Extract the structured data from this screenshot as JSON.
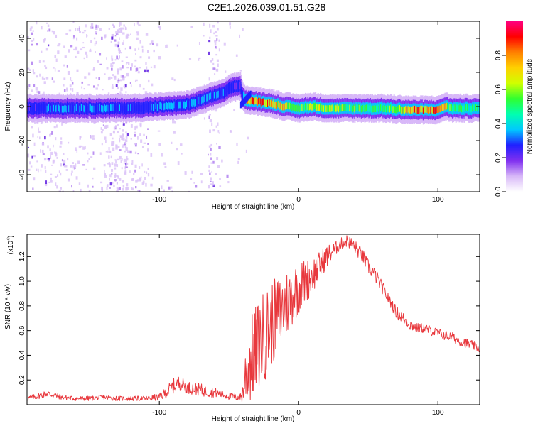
{
  "title": "C2E1.2026.039.01.51.G28",
  "colors": {
    "snr_line": "#e8383d",
    "axis": "#000000",
    "background": "#ffffff"
  },
  "chart_data": [
    {
      "type": "heatmap",
      "name": "spectrogram",
      "xlabel": "Height of straight line (km)",
      "ylabel": "Frequency (Hz)",
      "xlim": [
        -195,
        130
      ],
      "ylim": [
        -50,
        50
      ],
      "xticks": [
        -100,
        0,
        100
      ],
      "yticks": [
        -40,
        -20,
        0,
        20,
        40
      ],
      "colorbar": {
        "label": "Normalized spectral amplitude",
        "range": [
          0.0,
          1.0
        ],
        "ticks": [
          0.0,
          0.2,
          0.4,
          0.6,
          0.8
        ],
        "stops": [
          "#ffffff",
          "#d8b8f8",
          "#8030f0",
          "#2020ff",
          "#00c8ff",
          "#00ffb0",
          "#30ff30",
          "#d0ff00",
          "#ffd000",
          "#ff8000",
          "#ff0000",
          "#ff0080"
        ]
      },
      "ridge": {
        "x": [
          -195,
          -170,
          -140,
          -120,
          -100,
          -80,
          -65,
          -55,
          -48,
          -42,
          -40,
          -38,
          -30,
          -20,
          -10,
          0,
          10,
          20,
          40,
          60,
          80,
          100,
          105,
          110,
          130
        ],
        "y": [
          -1,
          -1,
          -1,
          -1,
          0,
          1,
          5,
          8,
          11,
          12,
          6,
          4,
          3,
          2,
          0,
          -1,
          0,
          -1,
          -1,
          -1,
          -2,
          -2,
          0,
          -1,
          -1
        ],
        "amplitude": [
          0.25,
          0.35,
          0.35,
          0.3,
          0.35,
          0.35,
          0.35,
          0.3,
          0.3,
          0.25,
          0.35,
          0.8,
          0.85,
          0.8,
          0.75,
          0.55,
          0.7,
          0.6,
          0.55,
          0.5,
          0.8,
          0.85,
          0.75,
          0.5,
          0.5
        ]
      }
    },
    {
      "type": "line",
      "name": "snr",
      "xlabel": "Height of straight line (km)",
      "ylabel": "SNR (10 * v/v)",
      "scale_label": "(x10",
      "scale_exponent": "4",
      "xlim": [
        -195,
        130
      ],
      "ylim": [
        0,
        1.38
      ],
      "xticks": [
        -100,
        0,
        100
      ],
      "yticks": [
        0.2,
        0.4,
        0.6,
        0.8,
        1.0,
        1.2
      ],
      "yticklabels": [
        "0.2",
        "0.4",
        "0.6",
        "0.8",
        "1.0",
        "1.2"
      ],
      "series": [
        {
          "name": "SNR",
          "x": [
            -195,
            -180,
            -170,
            -160,
            -150,
            -140,
            -130,
            -120,
            -110,
            -100,
            -95,
            -90,
            -85,
            -80,
            -75,
            -70,
            -65,
            -60,
            -55,
            -50,
            -45,
            -42,
            -40,
            -38,
            -35,
            -30,
            -25,
            -20,
            -15,
            -10,
            -5,
            0,
            5,
            10,
            15,
            20,
            25,
            30,
            35,
            40,
            45,
            50,
            55,
            60,
            65,
            70,
            75,
            80,
            85,
            90,
            95,
            100,
            105,
            110,
            115,
            120,
            125,
            130
          ],
          "y": [
            0.05,
            0.09,
            0.06,
            0.05,
            0.05,
            0.06,
            0.05,
            0.05,
            0.05,
            0.06,
            0.1,
            0.15,
            0.18,
            0.14,
            0.13,
            0.12,
            0.1,
            0.1,
            0.08,
            0.07,
            0.06,
            0.06,
            0.1,
            0.25,
            0.35,
            0.45,
            0.55,
            0.65,
            0.72,
            0.8,
            0.88,
            0.95,
            1.0,
            1.05,
            1.12,
            1.2,
            1.25,
            1.3,
            1.33,
            1.28,
            1.22,
            1.12,
            1.05,
            0.95,
            0.85,
            0.75,
            0.7,
            0.65,
            0.62,
            0.62,
            0.6,
            0.58,
            0.56,
            0.55,
            0.52,
            0.5,
            0.48,
            0.46
          ],
          "noise": [
            0.02,
            0.03,
            0.02,
            0.02,
            0.02,
            0.02,
            0.02,
            0.02,
            0.02,
            0.03,
            0.05,
            0.06,
            0.06,
            0.05,
            0.05,
            0.05,
            0.04,
            0.04,
            0.03,
            0.03,
            0.03,
            0.03,
            0.1,
            0.25,
            0.35,
            0.38,
            0.38,
            0.35,
            0.32,
            0.3,
            0.25,
            0.22,
            0.18,
            0.15,
            0.12,
            0.1,
            0.06,
            0.05,
            0.05,
            0.06,
            0.06,
            0.06,
            0.06,
            0.05,
            0.05,
            0.05,
            0.05,
            0.05,
            0.04,
            0.04,
            0.04,
            0.04,
            0.04,
            0.04,
            0.04,
            0.04,
            0.04,
            0.04
          ]
        }
      ]
    }
  ]
}
